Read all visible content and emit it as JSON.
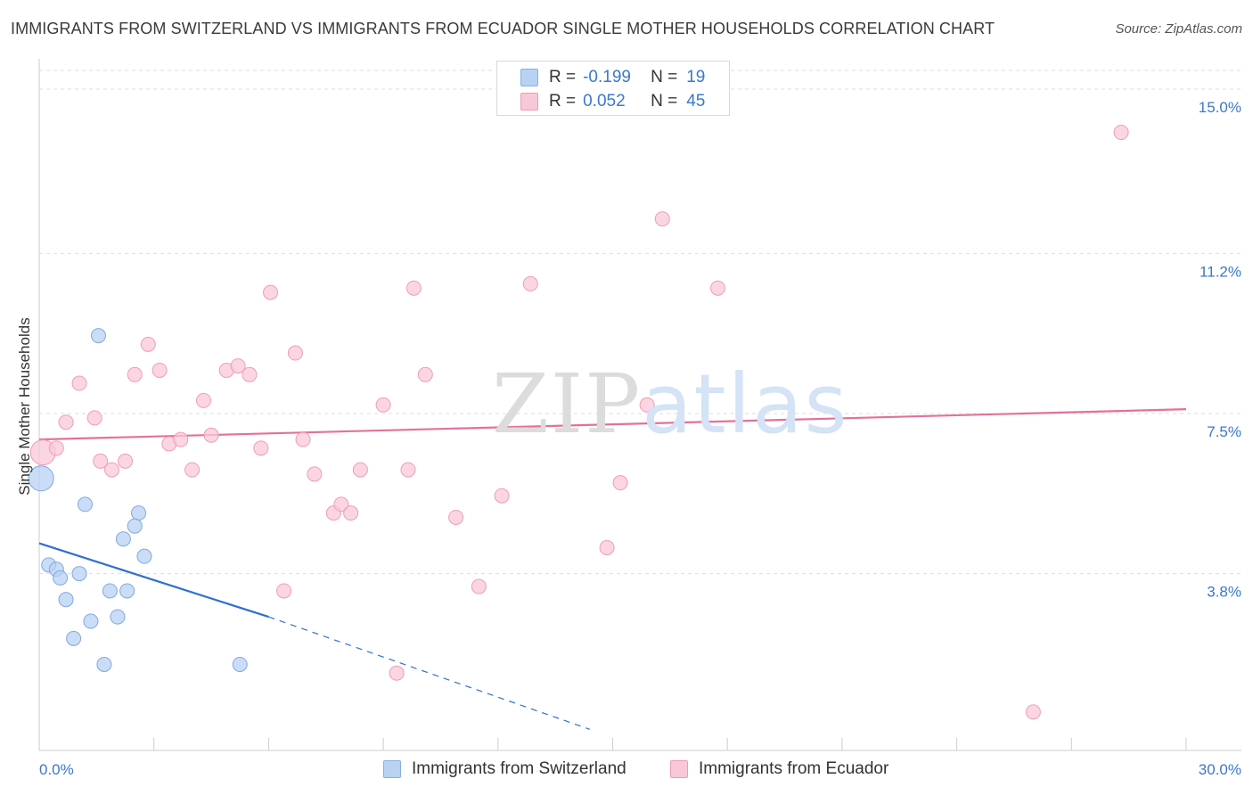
{
  "title": "IMMIGRANTS FROM SWITZERLAND VS IMMIGRANTS FROM ECUADOR SINGLE MOTHER HOUSEHOLDS CORRELATION CHART",
  "source": "Source: ZipAtlas.com",
  "watermark": {
    "zip": "ZIP",
    "atlas": "atlas"
  },
  "legend": {
    "rows": [
      {
        "r_label": "R =",
        "r_value": "-0.199",
        "n_label": "N =",
        "n_value": "19"
      },
      {
        "r_label": "R =",
        "r_value": "0.052",
        "n_label": "N =",
        "n_value": "45"
      }
    ]
  },
  "bottom_legend": [
    "Immigrants from Switzerland",
    "Immigrants from Ecuador"
  ],
  "colors": {
    "switzerland_fill": "#b8d2f3",
    "switzerland_stroke": "#7fa9e0",
    "switzerland_line": "#2f6fd0",
    "ecuador_fill": "#f9c8d8",
    "ecuador_stroke": "#ee9db8",
    "ecuador_line": "#e4709a",
    "tick_label": "#3a78cc",
    "grid": "#dddddd"
  },
  "chart_data": {
    "type": "scatter",
    "title": "IMMIGRANTS FROM SWITZERLAND VS IMMIGRANTS FROM ECUADOR SINGLE MOTHER HOUSEHOLDS CORRELATION CHART",
    "xlabel": "",
    "ylabel": "Single Mother Households",
    "xlim": [
      0,
      30
    ],
    "ylim": [
      0,
      15.7
    ],
    "x_tick_labels": [
      "0.0%",
      "30.0%"
    ],
    "y_ticks": [
      3.8,
      7.5,
      11.2,
      15.0
    ],
    "y_tick_labels": [
      "3.8%",
      "7.5%",
      "11.2%",
      "15.0%"
    ],
    "grid": true,
    "legend_position": "top-center",
    "series": [
      {
        "name": "Immigrants from Switzerland",
        "R": -0.199,
        "N": 19,
        "points": [
          [
            0.05,
            6.0,
            "large"
          ],
          [
            1.55,
            9.3
          ],
          [
            1.2,
            5.4
          ],
          [
            2.6,
            5.2
          ],
          [
            2.5,
            4.9
          ],
          [
            2.2,
            4.6
          ],
          [
            2.75,
            4.2
          ],
          [
            0.25,
            4.0
          ],
          [
            0.45,
            3.9
          ],
          [
            1.05,
            3.8
          ],
          [
            0.55,
            3.7
          ],
          [
            1.85,
            3.4
          ],
          [
            2.3,
            3.4
          ],
          [
            0.7,
            3.2
          ],
          [
            1.35,
            2.7
          ],
          [
            2.05,
            2.8
          ],
          [
            0.9,
            2.3
          ],
          [
            1.7,
            1.7
          ],
          [
            5.25,
            1.7
          ]
        ],
        "trend": {
          "x": [
            0,
            6.0
          ],
          "y": [
            4.5,
            2.8
          ]
        },
        "trend_extension": {
          "x": [
            6.0,
            14.4
          ],
          "y": [
            2.8,
            0.2
          ]
        }
      },
      {
        "name": "Immigrants from Ecuador",
        "R": 0.052,
        "N": 45,
        "points": [
          [
            0.1,
            6.6,
            "large"
          ],
          [
            0.45,
            6.7
          ],
          [
            0.7,
            7.3
          ],
          [
            1.05,
            8.2
          ],
          [
            1.45,
            7.4
          ],
          [
            1.6,
            6.4
          ],
          [
            1.9,
            6.2
          ],
          [
            2.25,
            6.4
          ],
          [
            2.5,
            8.4
          ],
          [
            2.85,
            9.1
          ],
          [
            3.15,
            8.5
          ],
          [
            3.4,
            6.8
          ],
          [
            3.7,
            6.9
          ],
          [
            4.0,
            6.2
          ],
          [
            4.3,
            7.8
          ],
          [
            4.5,
            7.0
          ],
          [
            4.9,
            8.5
          ],
          [
            5.2,
            8.6
          ],
          [
            5.5,
            8.4
          ],
          [
            5.8,
            6.7
          ],
          [
            6.05,
            10.3
          ],
          [
            6.4,
            3.4
          ],
          [
            6.7,
            8.9
          ],
          [
            6.9,
            6.9
          ],
          [
            7.2,
            6.1
          ],
          [
            7.7,
            5.2
          ],
          [
            7.9,
            5.4
          ],
          [
            8.15,
            5.2
          ],
          [
            8.4,
            6.2
          ],
          [
            9.0,
            7.7
          ],
          [
            9.35,
            1.5
          ],
          [
            9.65,
            6.2
          ],
          [
            9.8,
            10.4
          ],
          [
            10.1,
            8.4
          ],
          [
            10.9,
            5.1
          ],
          [
            11.5,
            3.5
          ],
          [
            12.1,
            5.6
          ],
          [
            12.85,
            10.5
          ],
          [
            14.85,
            4.4
          ],
          [
            15.2,
            5.9
          ],
          [
            15.9,
            7.7
          ],
          [
            16.3,
            12.0
          ],
          [
            17.75,
            10.4
          ],
          [
            26.0,
            0.6
          ],
          [
            28.3,
            14.0
          ]
        ],
        "trend": {
          "x": [
            0,
            30
          ],
          "y": [
            6.9,
            7.6
          ]
        }
      }
    ]
  }
}
